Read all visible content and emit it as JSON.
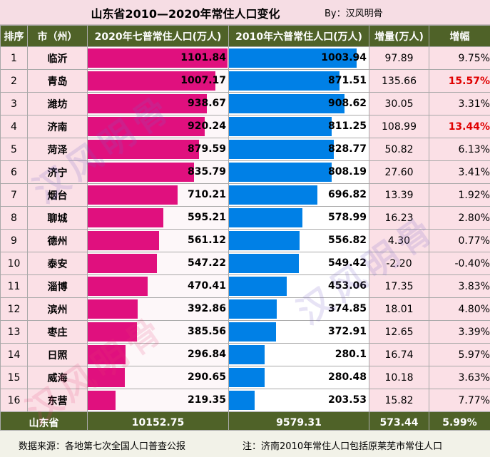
{
  "title": "山东省2010—2020年常住人口变化",
  "author": "By：汉风明骨",
  "headers": [
    "排序",
    "市（州）",
    "2020年七普常住人口(万人)",
    "2010年六普常住人口(万人)",
    "增量(万人)",
    "增幅"
  ],
  "total": {
    "label": "山东省",
    "v2020": "10152.75",
    "v2010": "9579.31",
    "delta": "573.44",
    "pct": "5.99%"
  },
  "footer": {
    "source": "数据来源：各地第七次全国人口普查公报",
    "note": "注：济南2010年常住人口包括原莱芜市常住人口"
  },
  "watermark": "汉风明骨",
  "colors": {
    "bar2020": "#e0107e",
    "bar2010": "#0080e6",
    "header": "#4f6228",
    "highlight": "#e00000"
  },
  "chart_data": {
    "type": "table",
    "title": "山东省2010—2020年常住人口变化",
    "bar_max": 1101.84,
    "rows": [
      {
        "rank": "1",
        "city": "临沂",
        "v2020": 1101.84,
        "v2010": 1003.94,
        "delta": "97.89",
        "pct": "9.75%",
        "highlight": false
      },
      {
        "rank": "2",
        "city": "青岛",
        "v2020": 1007.17,
        "v2010": 871.51,
        "delta": "135.66",
        "pct": "15.57%",
        "highlight": true
      },
      {
        "rank": "3",
        "city": "潍坊",
        "v2020": 938.67,
        "v2010": 908.62,
        "delta": "30.05",
        "pct": "3.31%",
        "highlight": false
      },
      {
        "rank": "4",
        "city": "济南",
        "v2020": 920.24,
        "v2010": 811.25,
        "delta": "108.99",
        "pct": "13.44%",
        "highlight": true
      },
      {
        "rank": "5",
        "city": "菏泽",
        "v2020": 879.59,
        "v2010": 828.77,
        "delta": "50.82",
        "pct": "6.13%",
        "highlight": false
      },
      {
        "rank": "6",
        "city": "济宁",
        "v2020": 835.79,
        "v2010": 808.19,
        "delta": "27.60",
        "pct": "3.41%",
        "highlight": false
      },
      {
        "rank": "7",
        "city": "烟台",
        "v2020": 710.21,
        "v2010": 696.82,
        "delta": "13.39",
        "pct": "1.92%",
        "highlight": false
      },
      {
        "rank": "8",
        "city": "聊城",
        "v2020": 595.21,
        "v2010": 578.99,
        "delta": "16.23",
        "pct": "2.80%",
        "highlight": false
      },
      {
        "rank": "9",
        "city": "德州",
        "v2020": 561.12,
        "v2010": 556.82,
        "delta": "4.30",
        "pct": "0.77%",
        "highlight": false
      },
      {
        "rank": "10",
        "city": "泰安",
        "v2020": 547.22,
        "v2010": 549.42,
        "delta": "-2.20",
        "pct": "-0.40%",
        "highlight": false
      },
      {
        "rank": "11",
        "city": "淄博",
        "v2020": 470.41,
        "v2010": 453.06,
        "delta": "17.35",
        "pct": "3.83%",
        "highlight": false
      },
      {
        "rank": "12",
        "city": "滨州",
        "v2020": 392.86,
        "v2010": 374.85,
        "delta": "18.01",
        "pct": "4.80%",
        "highlight": false
      },
      {
        "rank": "13",
        "city": "枣庄",
        "v2020": 385.56,
        "v2010": 372.91,
        "delta": "12.65",
        "pct": "3.39%",
        "highlight": false
      },
      {
        "rank": "14",
        "city": "日照",
        "v2020": 296.84,
        "v2010": 280.1,
        "delta": "16.74",
        "pct": "5.97%",
        "highlight": false
      },
      {
        "rank": "15",
        "city": "威海",
        "v2020": 290.65,
        "v2010": 280.48,
        "delta": "10.18",
        "pct": "3.63%",
        "highlight": false
      },
      {
        "rank": "16",
        "city": "东营",
        "v2020": 219.35,
        "v2010": 203.53,
        "delta": "15.82",
        "pct": "7.77%",
        "highlight": false
      }
    ]
  }
}
